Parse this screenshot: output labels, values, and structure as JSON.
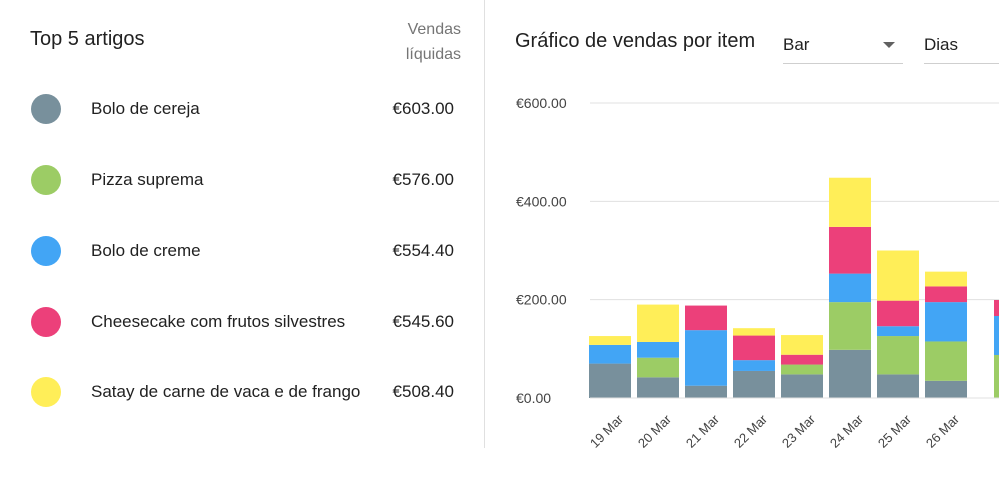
{
  "top_items": {
    "title": "Top 5 artigos",
    "column_header": [
      "Vendas",
      "líquidas"
    ],
    "items": [
      {
        "name": "Bolo de cereja",
        "value": "€603.00",
        "color": "#78909c"
      },
      {
        "name": "Pizza suprema",
        "value": "€576.00",
        "color": "#9ccc65"
      },
      {
        "name": "Bolo de creme",
        "value": "€554.40",
        "color": "#42a5f5"
      },
      {
        "name": "Cheesecake com frutos silvestres",
        "value": "€545.60",
        "color": "#ec407a"
      },
      {
        "name": "Satay de carne de vaca e de frango",
        "value": "€508.40",
        "color": "#ffee58"
      }
    ]
  },
  "chart_panel": {
    "title": "Gráfico de vendas por item",
    "chart_type_select": {
      "value": "Bar"
    },
    "period_select": {
      "value": "Dias"
    }
  },
  "chart_data": {
    "type": "bar",
    "stacked": true,
    "categories": [
      "19 Mar",
      "20 Mar",
      "21 Mar",
      "22 Mar",
      "23 Mar",
      "24 Mar",
      "25 Mar",
      "26 Mar"
    ],
    "series": [
      {
        "name": "Bolo de cereja",
        "color": "#78909c",
        "values": [
          70,
          42,
          25,
          55,
          48,
          98,
          48,
          35
        ]
      },
      {
        "name": "Pizza suprema",
        "color": "#9ccc65",
        "values": [
          0,
          40,
          0,
          0,
          20,
          97,
          78,
          80
        ]
      },
      {
        "name": "Bolo de creme",
        "color": "#42a5f5",
        "values": [
          38,
          32,
          113,
          22,
          0,
          58,
          20,
          80
        ]
      },
      {
        "name": "Cheesecake com frutos silvestres",
        "color": "#ec407a",
        "values": [
          0,
          0,
          50,
          50,
          20,
          95,
          52,
          32
        ]
      },
      {
        "name": "Satay de carne de vaca e de frango",
        "color": "#ffee58",
        "values": [
          18,
          76,
          0,
          15,
          40,
          100,
          102,
          30
        ]
      }
    ],
    "partial_last_bar": {
      "color_stack": [
        "#9ccc65",
        "#42a5f5",
        "#ec407a"
      ]
    },
    "yticks": [
      "€0.00",
      "€200.00",
      "€400.00",
      "€600.00"
    ],
    "ylim": [
      0,
      600
    ],
    "grid": true,
    "legend": "none"
  }
}
